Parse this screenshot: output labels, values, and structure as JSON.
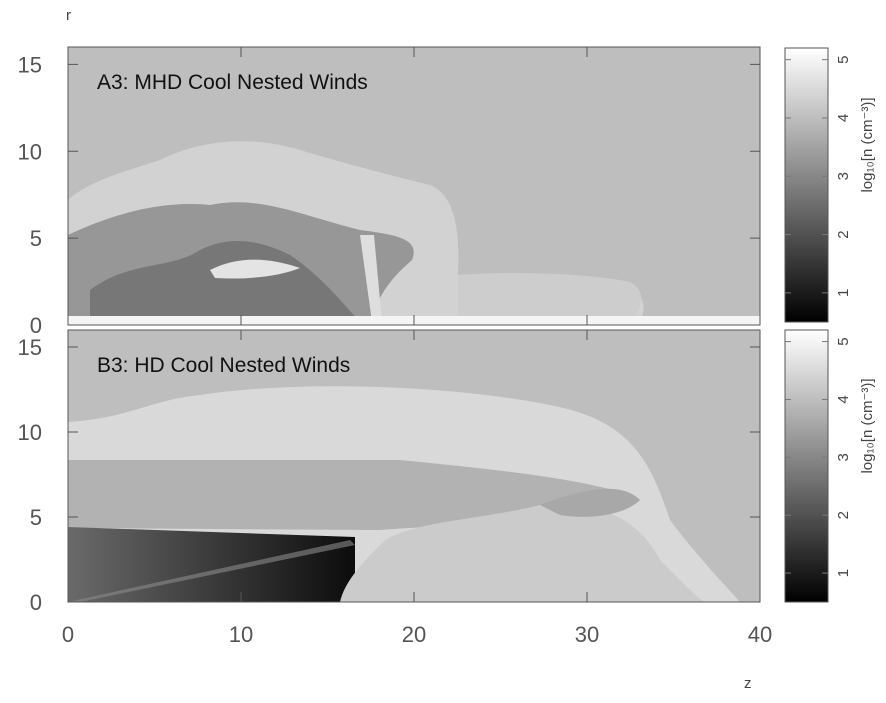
{
  "chart_data": [
    {
      "type": "heatmap",
      "title": "A3: MHD Cool Nested Winds",
      "ylabel": "r",
      "xlim": [
        0,
        40
      ],
      "ylim": [
        0,
        16
      ],
      "xticks": [
        0,
        10,
        20,
        30,
        40
      ],
      "show_xtick_labels": false,
      "yticks": [
        0,
        5,
        10,
        15
      ],
      "colorbar": {
        "label": "log₁₀[n (cm⁻³)]",
        "lim": [
          0.5,
          5.2
        ],
        "ticks": [
          1,
          2,
          3,
          4,
          5
        ]
      }
    },
    {
      "type": "heatmap",
      "title": "B3: HD Cool Nested Winds",
      "xlabel": "z",
      "xlim": [
        0,
        40
      ],
      "ylim": [
        0,
        16
      ],
      "xticks": [
        0,
        10,
        20,
        30,
        40
      ],
      "show_xtick_labels": true,
      "yticks": [
        0,
        5,
        10,
        15
      ],
      "colorbar": {
        "label": "log₁₀[n (cm⁻³)]",
        "lim": [
          0.5,
          5.2
        ],
        "ticks": [
          1,
          2,
          3,
          4,
          5
        ]
      }
    }
  ]
}
